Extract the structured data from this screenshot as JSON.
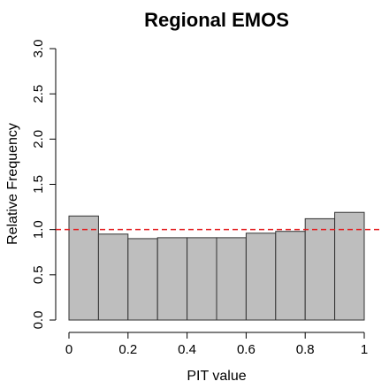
{
  "chart_data": {
    "type": "bar",
    "title": "Regional EMOS",
    "xlabel": "PIT value",
    "ylabel": "Relative Frequency",
    "bin_edges": [
      0,
      0.1,
      0.2,
      0.3,
      0.4,
      0.5,
      0.6,
      0.7,
      0.8,
      0.9,
      1.0
    ],
    "values": [
      1.15,
      0.95,
      0.9,
      0.91,
      0.91,
      0.91,
      0.96,
      0.98,
      1.12,
      1.19
    ],
    "xlim": [
      0,
      1
    ],
    "ylim": [
      0,
      3
    ],
    "x_ticks": [
      "0",
      "0.2",
      "0.4",
      "0.6",
      "0.8",
      "1"
    ],
    "y_ticks": [
      "0.0",
      "0.5",
      "1.0",
      "1.5",
      "2.0",
      "2.5",
      "3.0"
    ],
    "reference_line": 1.0,
    "bar_color": "#bebebe",
    "bar_border": "#333333",
    "reference_color": "#e41a1c",
    "grid": false
  }
}
